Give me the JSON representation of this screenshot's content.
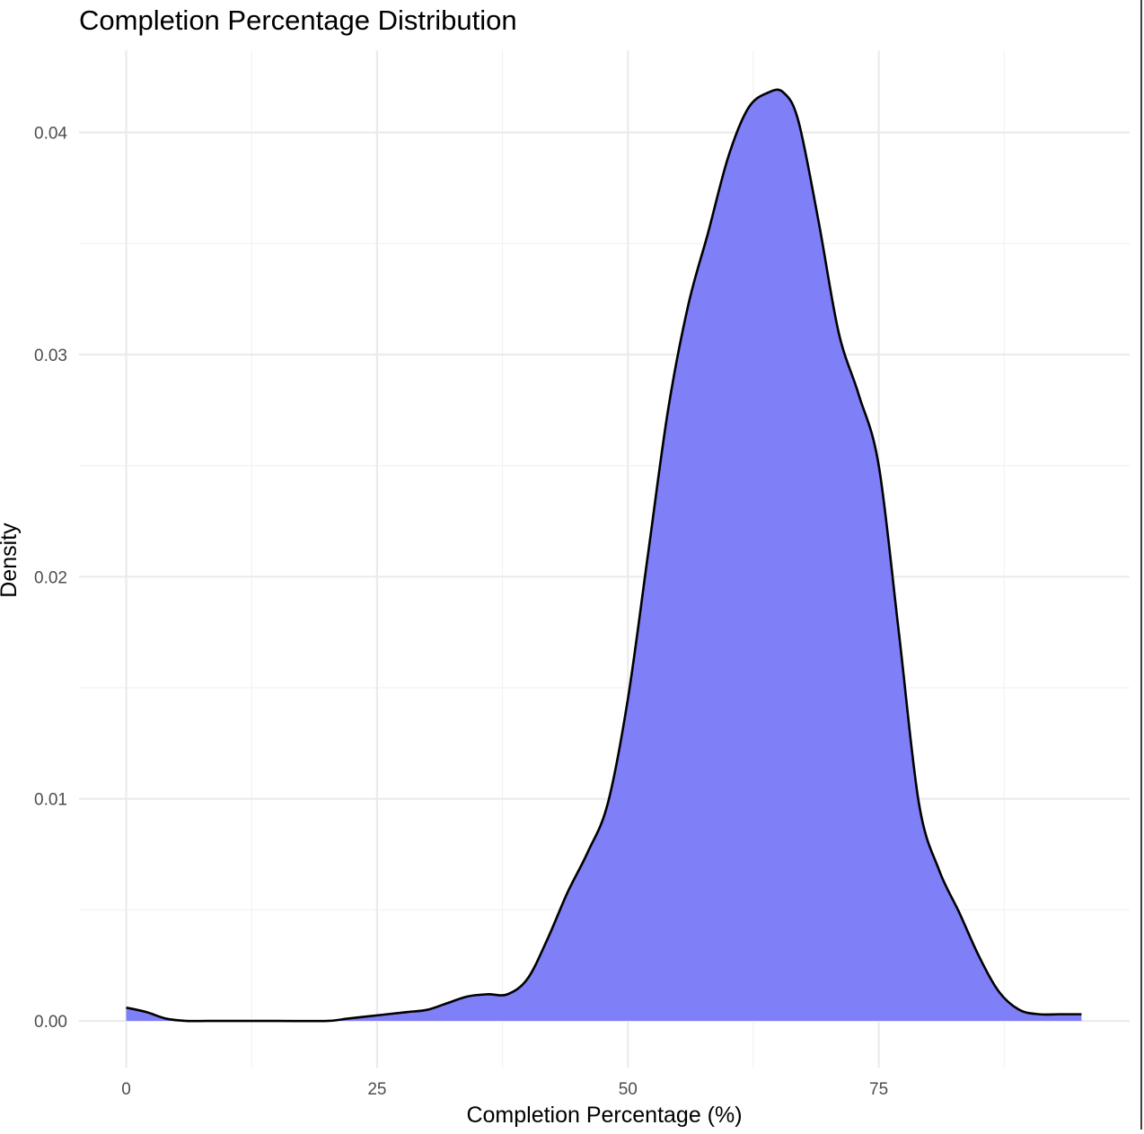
{
  "chart_data": {
    "type": "area",
    "title": "Completion Percentage Distribution",
    "xlabel": "Completion Percentage (%)",
    "ylabel": "Density",
    "xlim": [
      -4.7,
      100
    ],
    "ylim": [
      -0.0021,
      0.0437
    ],
    "x_ticks": [
      0,
      25,
      50,
      75
    ],
    "x_tick_labels": [
      "0",
      "25",
      "50",
      "75"
    ],
    "y_ticks": [
      0.0,
      0.01,
      0.02,
      0.03,
      0.04
    ],
    "y_tick_labels": [
      "0.00",
      "0.01",
      "0.02",
      "0.03",
      "0.04"
    ],
    "grid": true,
    "legend": "none",
    "fill_color": "#7f7ff7",
    "line_color": "#000000",
    "series": [
      {
        "x": [
          0,
          2,
          4,
          6,
          8,
          10,
          15,
          20,
          22,
          24,
          26,
          28,
          30,
          32,
          34,
          36,
          38,
          40,
          42,
          44,
          46,
          48,
          50,
          52,
          54,
          56,
          58,
          60,
          62,
          64,
          65.5,
          67,
          69,
          71,
          73,
          75,
          77,
          79,
          81,
          83,
          85,
          87,
          89,
          91,
          93,
          95.2
        ],
        "y": [
          0.0006,
          0.0004,
          0.0001,
          0.0,
          0.0,
          0.0,
          0.0,
          0.0,
          0.0001,
          0.0002,
          0.0003,
          0.0004,
          0.0005,
          0.0008,
          0.0011,
          0.0012,
          0.0012,
          0.0019,
          0.0037,
          0.0058,
          0.0076,
          0.0098,
          0.0145,
          0.021,
          0.0275,
          0.0322,
          0.0355,
          0.0389,
          0.0411,
          0.0418,
          0.0418,
          0.0405,
          0.036,
          0.031,
          0.0282,
          0.025,
          0.0175,
          0.0098,
          0.0068,
          0.0049,
          0.0029,
          0.0013,
          0.0005,
          0.0003,
          0.0003,
          0.0003
        ]
      }
    ]
  }
}
